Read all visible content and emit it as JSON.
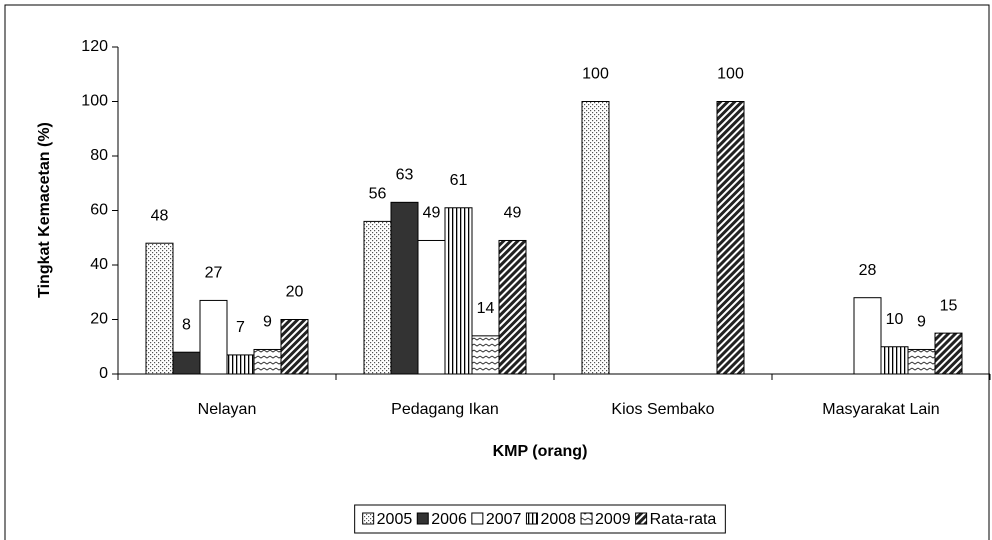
{
  "chart_data": {
    "type": "bar",
    "xlabel": "KMP (orang)",
    "ylabel": "Tingkat Kemacetan (%)",
    "categories": [
      "Nelayan",
      "Pedagang Ikan",
      "Kios Sembako",
      "Masyarakat Lain"
    ],
    "series": [
      {
        "name": "2005",
        "color": "#ffffff",
        "pattern": "dots",
        "values": [
          48,
          56,
          100,
          null
        ]
      },
      {
        "name": "2006",
        "color": "#333333",
        "pattern": "solid",
        "values": [
          8,
          63,
          null,
          null
        ]
      },
      {
        "name": "2007",
        "color": "#ffffff",
        "pattern": "solid",
        "values": [
          27,
          49,
          null,
          28
        ]
      },
      {
        "name": "2008",
        "color": "#ffffff",
        "pattern": "vertical",
        "values": [
          7,
          61,
          null,
          10
        ]
      },
      {
        "name": "2009",
        "color": "#ffffff",
        "pattern": "wave",
        "values": [
          9,
          14,
          null,
          9
        ]
      },
      {
        "name": "Rata-rata",
        "color": "#ffffff",
        "pattern": "diagonal",
        "values": [
          20,
          49,
          100,
          15
        ]
      }
    ],
    "ylim": [
      0,
      120
    ],
    "yticks": [
      0,
      20,
      40,
      60,
      80,
      100,
      120
    ],
    "legend": "bottom"
  }
}
